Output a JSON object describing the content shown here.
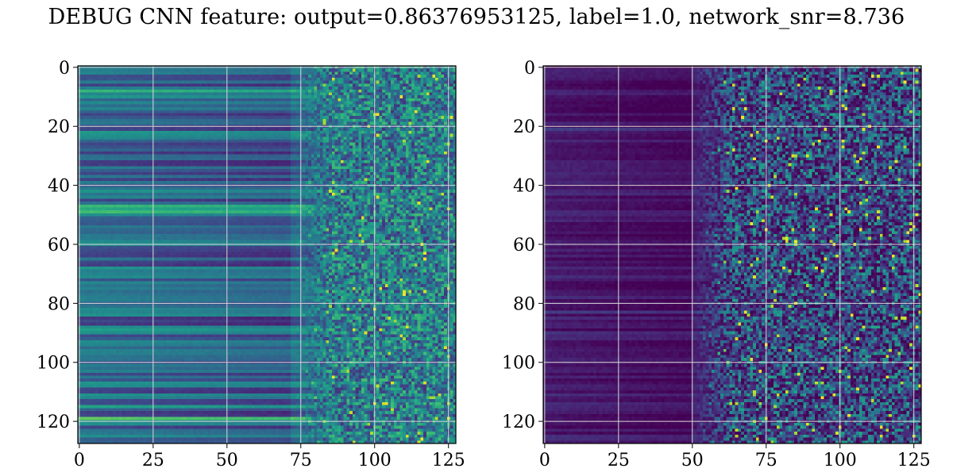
{
  "title": "DEBUG CNN feature: output=0.86376953125, label=1.0, network_snr=8.736",
  "chart_data": [
    {
      "type": "heatmap",
      "colormap": "viridis",
      "rows": 128,
      "cols": 128,
      "xlim": [
        0,
        127
      ],
      "ylim": [
        127,
        0
      ],
      "xticks": [
        0,
        25,
        50,
        75,
        100,
        125
      ],
      "yticks": [
        0,
        20,
        40,
        60,
        80,
        100,
        120
      ],
      "xtick_labels": [
        "0",
        "25",
        "50",
        "75",
        "100",
        "125"
      ],
      "ytick_labels": [
        "0",
        "20",
        "40",
        "60",
        "80",
        "100",
        "120"
      ],
      "grid": true,
      "description_values": {
        "left_region_level": 0.35,
        "right_region_noise": 0.45,
        "transition_col": 72
      }
    },
    {
      "type": "heatmap",
      "colormap": "viridis",
      "rows": 128,
      "cols": 128,
      "xlim": [
        0,
        127
      ],
      "ylim": [
        127,
        0
      ],
      "xticks": [
        0,
        25,
        50,
        75,
        100,
        125
      ],
      "yticks": [
        0,
        20,
        40,
        60,
        80,
        100,
        120
      ],
      "xtick_labels": [
        "0",
        "25",
        "50",
        "75",
        "100",
        "125"
      ],
      "ytick_labels": [
        "0",
        "20",
        "40",
        "60",
        "80",
        "100",
        "120"
      ],
      "grid": true,
      "description_values": {
        "left_region_level": 0.08,
        "right_region_noise": 0.35,
        "transition_col": 50
      }
    }
  ]
}
